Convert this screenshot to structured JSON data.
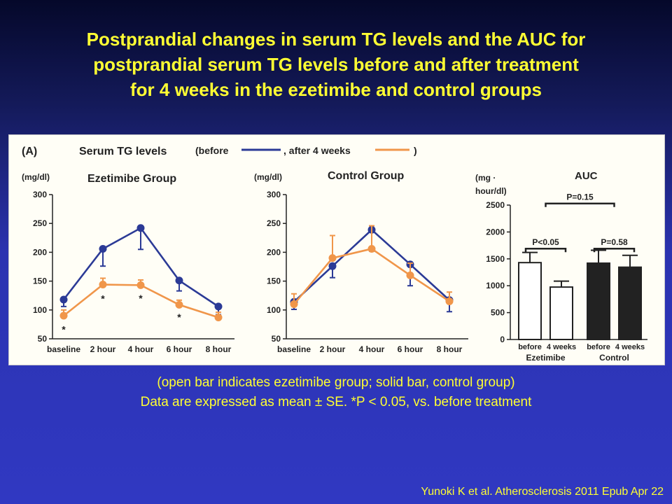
{
  "slide": {
    "title_lines": [
      "Postprandial changes in serum TG levels and the AUC  for",
      "postprandial serum TG levels before and after treatment",
      "for 4 weeks in the ezetimibe and control groups"
    ],
    "caption_lines": [
      "(open bar indicates ezetimibe group; solid bar, control group)",
      "Data are expressed as mean ± SE. *P < 0.05, vs. before treatment"
    ],
    "citation": "Yunoki K et al. Atherosclerosis 2011 Epub Apr 22"
  },
  "figure": {
    "panel_label": "(A)",
    "legend_title": "Serum TG levels",
    "legend_before": "(before",
    "legend_after": ", after 4 weeks",
    "legend_close": ")",
    "colors": {
      "before": "#2b3a96",
      "after": "#f0964a",
      "solid_bar": "#222222",
      "open_bar": "#ffffff"
    }
  },
  "chart_data": [
    {
      "type": "line",
      "title": "Ezetimibe Group",
      "ylabel": "(mg/dl)",
      "ylim": [
        50,
        300
      ],
      "yticks": [
        50,
        100,
        150,
        200,
        250,
        300
      ],
      "categories": [
        "baseline",
        "2 hour",
        "4 hour",
        "6 hour",
        "8 hour"
      ],
      "series": [
        {
          "key": "before",
          "values": [
            118,
            206,
            242,
            151,
            106
          ],
          "errors": [
            12,
            30,
            37,
            18,
            14
          ]
        },
        {
          "key": "after",
          "values": [
            90,
            144,
            143,
            109,
            87
          ],
          "errors": [
            10,
            11,
            9,
            8,
            9
          ]
        }
      ],
      "annotations": [
        "*",
        "*",
        "*",
        "*"
      ]
    },
    {
      "type": "line",
      "title": "Control Group",
      "ylabel": "(mg/dl)",
      "ylim": [
        50,
        300
      ],
      "yticks": [
        50,
        100,
        150,
        200,
        250,
        300
      ],
      "categories": [
        "baseline",
        "2 hour",
        "4 hour",
        "6 hour",
        "8 hour"
      ],
      "series": [
        {
          "key": "before",
          "values": [
            114,
            176,
            239,
            179,
            117
          ],
          "errors": [
            13,
            20,
            37,
            37,
            20
          ]
        },
        {
          "key": "after",
          "values": [
            110,
            190,
            206,
            160,
            115
          ],
          "errors": [
            18,
            39,
            40,
            21,
            16
          ]
        }
      ]
    },
    {
      "type": "bar",
      "title": "AUC",
      "ylabel_lines": [
        "(mg ·",
        "hour/dl)"
      ],
      "ylim": [
        0,
        2500
      ],
      "yticks": [
        0,
        500,
        1000,
        1500,
        2000,
        2500
      ],
      "categories": [
        "before",
        "4 weeks",
        "before",
        "4 weeks"
      ],
      "groups": [
        "Ezetimibe",
        "Control"
      ],
      "values": [
        1430,
        975,
        1420,
        1345
      ],
      "errors": [
        190,
        110,
        240,
        220
      ],
      "fill": [
        "open",
        "open",
        "solid",
        "solid"
      ],
      "comparisons": [
        {
          "label": "P<0.05"
        },
        {
          "label": "P=0.58"
        },
        {
          "label": "P=0.15"
        }
      ]
    }
  ]
}
